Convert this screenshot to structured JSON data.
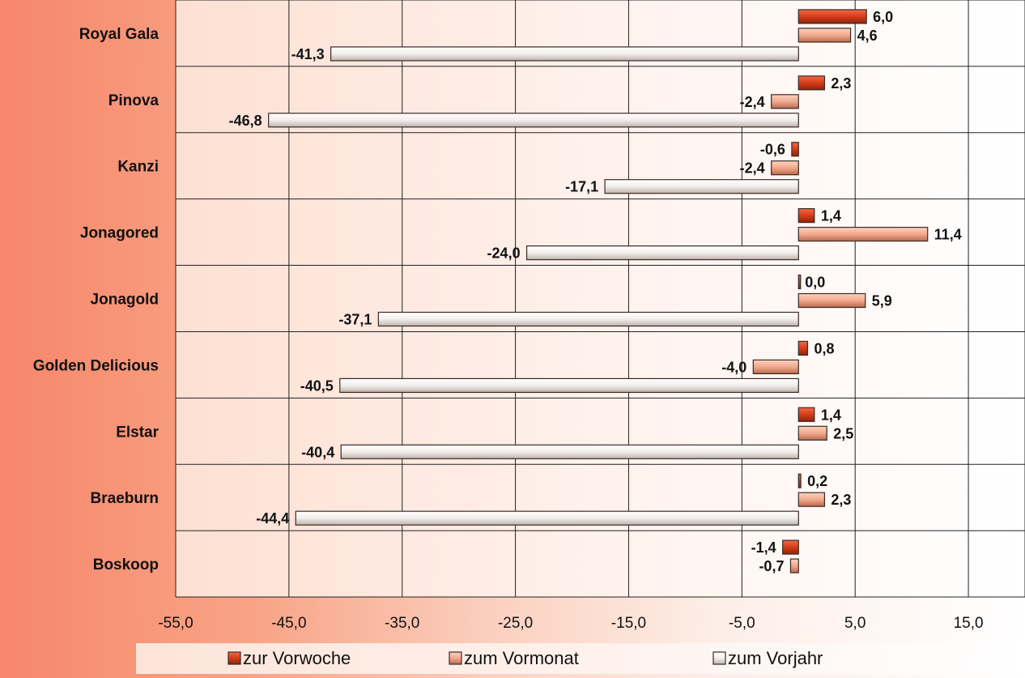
{
  "chart_data": {
    "type": "bar",
    "orientation": "horizontal",
    "title": "",
    "categories": [
      "Royal Gala",
      "Pinova",
      "Kanzi",
      "Jonagored",
      "Jonagold",
      "Golden Delicious",
      "Elstar",
      "Braeburn",
      "Boskoop"
    ],
    "series": [
      {
        "name": "zur Vorwoche",
        "color": "#d9401e",
        "values": [
          6.0,
          2.3,
          -0.6,
          1.4,
          0.0,
          0.8,
          1.4,
          0.2,
          -1.4
        ]
      },
      {
        "name": "zum Vormonat",
        "color": "#f2a98c",
        "values": [
          4.6,
          -2.4,
          -2.4,
          11.4,
          5.9,
          -4.0,
          2.5,
          2.3,
          -0.7
        ]
      },
      {
        "name": "zum Vorjahr",
        "color": "#f4f1ee",
        "values": [
          -41.3,
          -46.8,
          -17.1,
          -24.0,
          -37.1,
          -40.5,
          -40.4,
          -44.4,
          null
        ]
      }
    ],
    "value_labels": [
      [
        "6,0",
        "4,6",
        "-41,3"
      ],
      [
        "2,3",
        "-2,4",
        "-46,8"
      ],
      [
        "-0,6",
        "-2,4",
        "-17,1"
      ],
      [
        "1,4",
        "11,4",
        "-24,0"
      ],
      [
        "0,0",
        "5,9",
        "-37,1"
      ],
      [
        "0,8",
        "-4,0",
        "-40,5"
      ],
      [
        "1,4",
        "2,5",
        "-40,4"
      ],
      [
        "0,2",
        "2,3",
        "-44,4"
      ],
      [
        "-1,4",
        "-0,7",
        ""
      ]
    ],
    "xlim": [
      -55,
      20
    ],
    "xticks": [
      -55,
      -45,
      -35,
      -25,
      -15,
      -5,
      5,
      15
    ],
    "xtick_labels": [
      "-55,0",
      "-45,0",
      "-35,0",
      "-25,0",
      "-15,0",
      "-5,0",
      "5,0",
      "15,0"
    ],
    "grid": true,
    "legend_position": "bottom",
    "xlabel": "",
    "ylabel": ""
  }
}
